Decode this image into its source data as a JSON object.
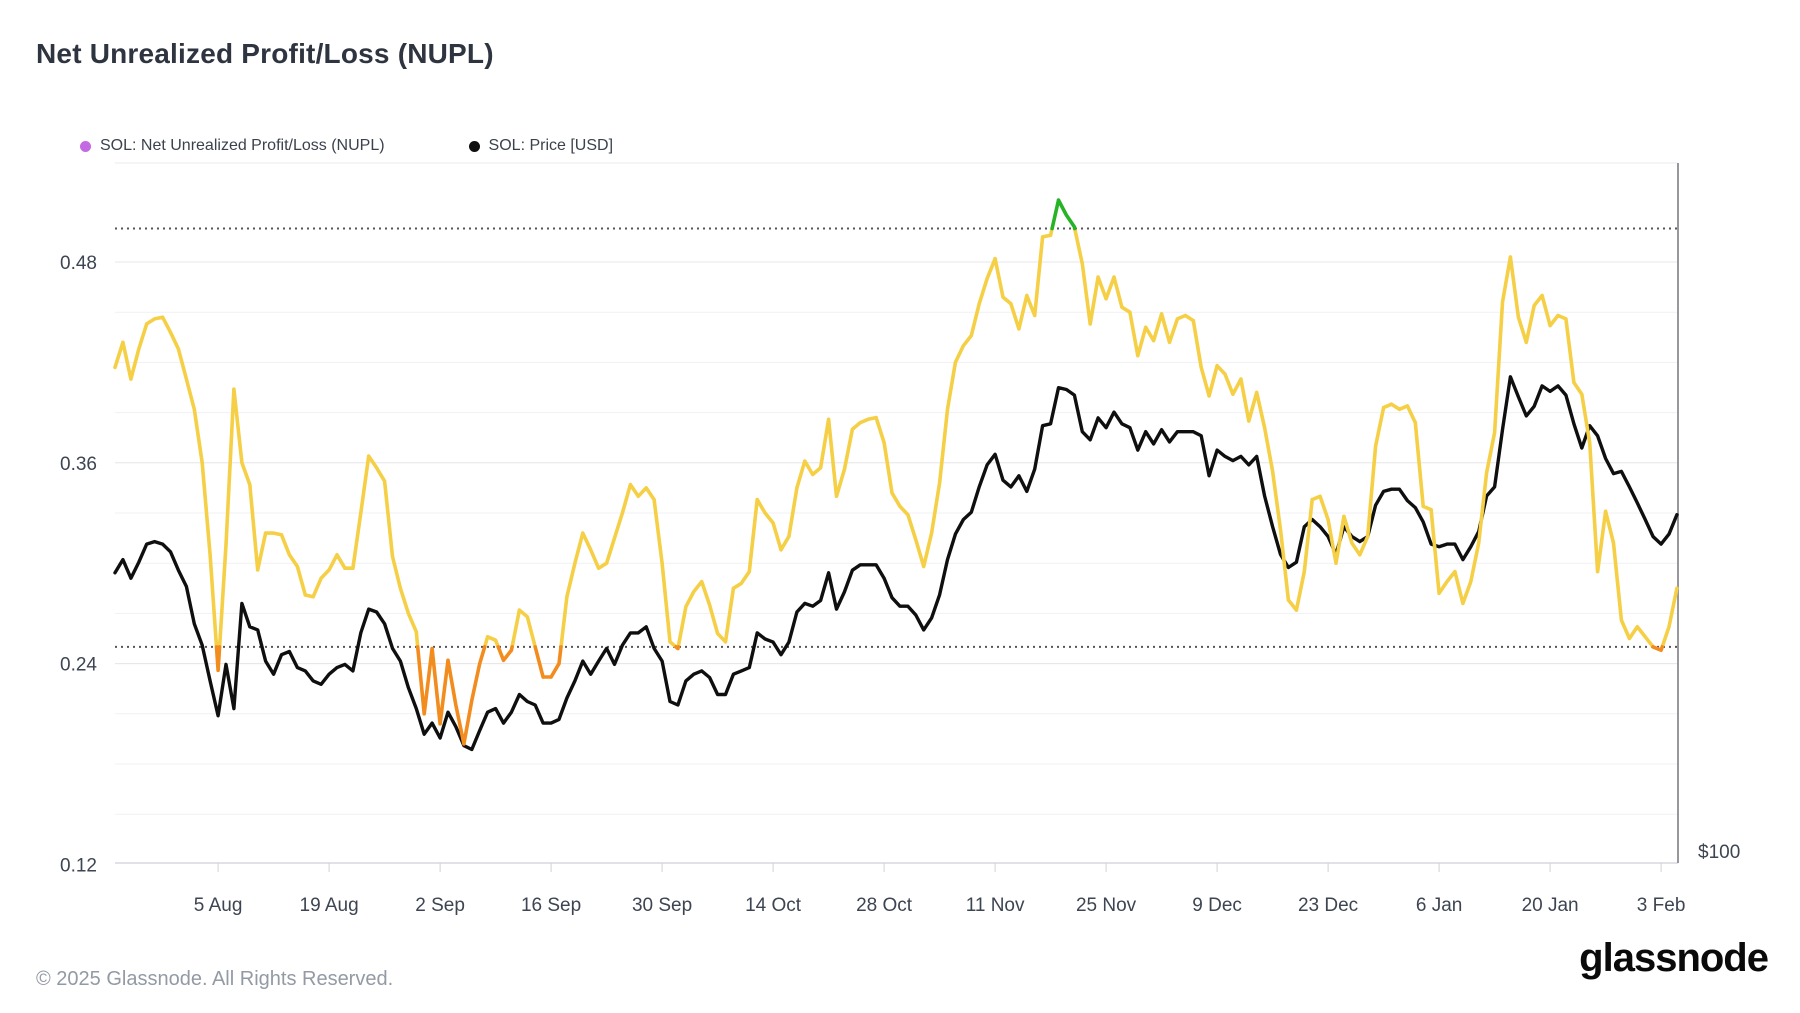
{
  "header": {
    "title": "Net Unrealized Profit/Loss (NUPL)"
  },
  "legend": {
    "items": [
      {
        "label": "SOL: Net Unrealized Profit/Loss (NUPL)",
        "dot_color": "#c36ae2"
      },
      {
        "label": "SOL: Price [USD]",
        "dot_color": "#0f0f10"
      }
    ]
  },
  "footer": {
    "copyright": "© 2025 Glassnode. All Rights Reserved.",
    "brand": "glassnode"
  },
  "chart_data": {
    "type": "line",
    "title": "Net Unrealized Profit/Loss (NUPL)",
    "grid": "horizontal",
    "legend_position": "top-left",
    "x_axis": {
      "resolution": "daily",
      "start_date": "23 Jul 2024",
      "end_date": "5 Feb 2025",
      "ticks": [
        {
          "label": "5 Aug",
          "day_index": 13
        },
        {
          "label": "19 Aug",
          "day_index": 27
        },
        {
          "label": "2 Sep",
          "day_index": 41
        },
        {
          "label": "16 Sep",
          "day_index": 55
        },
        {
          "label": "30 Sep",
          "day_index": 69
        },
        {
          "label": "14 Oct",
          "day_index": 83
        },
        {
          "label": "28 Oct",
          "day_index": 97
        },
        {
          "label": "11 Nov",
          "day_index": 111
        },
        {
          "label": "25 Nov",
          "day_index": 125
        },
        {
          "label": "9 Dec",
          "day_index": 139
        },
        {
          "label": "23 Dec",
          "day_index": 153
        },
        {
          "label": "6 Jan",
          "day_index": 167
        },
        {
          "label": "20 Jan",
          "day_index": 181
        },
        {
          "label": "3 Feb",
          "day_index": 195
        }
      ]
    },
    "y_axis_left": {
      "metric": "NUPL",
      "tick_values": [
        0.48,
        0.36,
        0.24,
        0.12
      ],
      "tick_labels": [
        "0.48",
        "0.36",
        "0.24",
        "0.12"
      ],
      "minor_grid_step": 0.03,
      "range": [
        0.12,
        0.535
      ]
    },
    "y_axis_right": {
      "metric": "Price [USD]",
      "scale": "log",
      "visible_label": "$100",
      "visible_label_value": 100
    },
    "threshold_lines": [
      0.25,
      0.5
    ],
    "series": [
      {
        "name": "SOL: Net Unrealized Profit/Loss (NUPL)",
        "axis": "left",
        "band_colors": {
          "below_0_25": "#f28c1e",
          "between": "#f5cf45",
          "above_0_5": "#26b426"
        },
        "values": [
          0.417,
          0.432,
          0.41,
          0.428,
          0.443,
          0.446,
          0.447,
          0.438,
          0.428,
          0.41,
          0.392,
          0.36,
          0.305,
          0.236,
          0.311,
          0.404,
          0.36,
          0.347,
          0.296,
          0.318,
          0.318,
          0.317,
          0.305,
          0.298,
          0.281,
          0.28,
          0.291,
          0.296,
          0.305,
          0.297,
          0.297,
          0.33,
          0.364,
          0.357,
          0.349,
          0.304,
          0.285,
          0.27,
          0.259,
          0.21,
          0.249,
          0.204,
          0.242,
          0.215,
          0.192,
          0.218,
          0.24,
          0.256,
          0.254,
          0.242,
          0.248,
          0.272,
          0.268,
          0.25,
          0.232,
          0.232,
          0.24,
          0.28,
          0.3,
          0.318,
          0.308,
          0.297,
          0.3,
          0.315,
          0.33,
          0.347,
          0.34,
          0.345,
          0.338,
          0.3,
          0.253,
          0.249,
          0.274,
          0.283,
          0.289,
          0.275,
          0.258,
          0.253,
          0.285,
          0.288,
          0.295,
          0.338,
          0.33,
          0.324,
          0.308,
          0.316,
          0.345,
          0.361,
          0.353,
          0.357,
          0.386,
          0.34,
          0.356,
          0.38,
          0.384,
          0.386,
          0.387,
          0.372,
          0.342,
          0.334,
          0.329,
          0.314,
          0.298,
          0.318,
          0.348,
          0.392,
          0.42,
          0.43,
          0.436,
          0.455,
          0.47,
          0.482,
          0.459,
          0.455,
          0.44,
          0.46,
          0.448,
          0.495,
          0.496,
          0.517,
          0.508,
          0.501,
          0.479,
          0.443,
          0.471,
          0.458,
          0.471,
          0.453,
          0.45,
          0.424,
          0.441,
          0.433,
          0.449,
          0.432,
          0.446,
          0.448,
          0.445,
          0.417,
          0.4,
          0.418,
          0.413,
          0.401,
          0.41,
          0.385,
          0.402,
          0.381,
          0.355,
          0.32,
          0.278,
          0.272,
          0.295,
          0.338,
          0.34,
          0.326,
          0.3,
          0.328,
          0.312,
          0.305,
          0.316,
          0.37,
          0.393,
          0.395,
          0.392,
          0.394,
          0.384,
          0.334,
          0.332,
          0.282,
          0.289,
          0.295,
          0.276,
          0.289,
          0.312,
          0.354,
          0.378,
          0.456,
          0.483,
          0.447,
          0.432,
          0.454,
          0.46,
          0.442,
          0.448,
          0.446,
          0.408,
          0.401,
          0.372,
          0.295,
          0.331,
          0.312,
          0.266,
          0.255,
          0.262,
          0.256,
          0.25,
          0.248,
          0.262,
          0.285
        ]
      },
      {
        "name": "SOL: Price [USD]",
        "axis": "right",
        "color": "#0f0f10",
        "values": [
          179,
          184,
          177,
          183,
          190,
          191,
          190,
          187,
          180,
          174,
          161,
          154,
          143,
          133,
          148,
          135,
          168,
          160,
          159,
          149,
          145,
          151,
          152,
          147,
          146,
          143,
          142,
          145,
          147,
          148,
          146,
          158,
          166,
          165,
          161,
          153,
          149,
          141,
          135,
          128,
          131,
          127,
          134,
          130,
          125,
          124,
          129,
          134,
          135,
          131,
          134,
          139,
          137,
          136,
          131,
          131,
          132,
          138,
          143,
          149,
          145,
          149,
          153,
          148,
          154,
          158,
          158,
          160,
          153,
          149,
          137,
          136,
          143,
          145,
          146,
          144,
          139,
          139,
          145,
          146,
          147,
          158,
          156,
          155,
          151,
          155,
          165,
          168,
          167,
          169,
          179,
          166,
          172,
          180,
          182,
          182,
          182,
          177,
          170,
          167,
          167,
          164,
          159,
          163,
          171,
          184,
          194,
          200,
          203,
          214,
          224,
          229,
          217,
          214,
          219,
          212,
          222,
          243,
          244,
          263,
          262,
          259,
          240,
          236,
          247,
          242,
          250,
          244,
          242,
          231,
          240,
          234,
          241,
          235,
          240,
          240,
          240,
          238,
          219,
          231,
          228,
          226,
          228,
          224,
          228,
          210,
          197,
          186,
          181,
          183,
          197,
          200,
          197,
          193,
          186,
          197,
          193,
          191,
          193,
          206,
          212,
          213,
          213,
          208,
          205,
          199,
          190,
          189,
          190,
          190,
          184,
          189,
          195,
          210,
          214,
          241,
          269,
          258,
          248,
          253,
          264,
          261,
          264,
          259,
          244,
          232,
          243,
          238,
          227,
          220,
          221,
          214,
          207,
          200,
          193,
          190,
          194,
          202
        ]
      }
    ]
  }
}
